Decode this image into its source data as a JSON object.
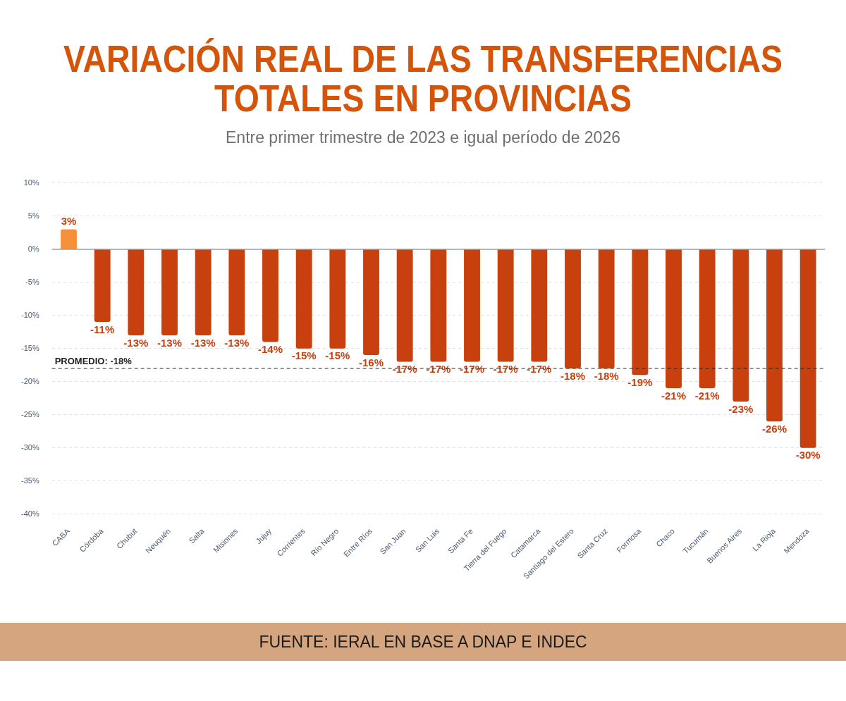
{
  "chart_data": {
    "type": "bar",
    "title": "VARIACIÓN REAL DE LAS TRANSFERENCIAS TOTALES EN PROVINCIAS",
    "subtitle": "Entre primer trimestre de 2023 e igual período de 2026",
    "categories": [
      "CABA",
      "Córdoba",
      "Chubut",
      "Neuquén",
      "Salta",
      "Misiones",
      "Jujuy",
      "Corrientes",
      "Río Negro",
      "Entre Ríos",
      "San Juan",
      "San Luis",
      "Santa Fe",
      "Tierra del Fuego",
      "Catamarca",
      "Santiago del Estero",
      "Santa Cruz",
      "Formosa",
      "Chaco",
      "Tucumán",
      "Buenos Aires",
      "La Rioja",
      "Mendoza"
    ],
    "values": [
      3,
      -11,
      -13,
      -13,
      -13,
      -13,
      -14,
      -15,
      -15,
      -16,
      -17,
      -17,
      -17,
      -17,
      -17,
      -18,
      -18,
      -19,
      -21,
      -21,
      -23,
      -26,
      -30
    ],
    "value_labels": [
      "3%",
      "-11%",
      "-13%",
      "-13%",
      "-13%",
      "-13%",
      "-14%",
      "-15%",
      "-15%",
      "-16%",
      "-17%",
      "-17%",
      "-17%",
      "-17%",
      "-17%",
      "-18%",
      "-18%",
      "-19%",
      "-21%",
      "-21%",
      "-23%",
      "-26%",
      "-30%"
    ],
    "colors": [
      "#f7903a",
      "#c9400f",
      "#c9400f",
      "#c9400f",
      "#c9400f",
      "#c9400f",
      "#c9400f",
      "#c9400f",
      "#c9400f",
      "#c9400f",
      "#c9400f",
      "#c9400f",
      "#c9400f",
      "#c9400f",
      "#c9400f",
      "#c9400f",
      "#c9400f",
      "#c9400f",
      "#c9400f",
      "#c9400f",
      "#c9400f",
      "#c9400f",
      "#c9400f"
    ],
    "ylim": [
      -40,
      10
    ],
    "yticks": [
      {
        "value": -40,
        "label": "-40%"
      },
      {
        "value": -35,
        "label": "-35%"
      },
      {
        "value": -30,
        "label": "-30%"
      },
      {
        "value": -25,
        "label": "-25%"
      },
      {
        "value": -20,
        "label": "-20%"
      },
      {
        "value": -15,
        "label": "-15%"
      },
      {
        "value": -10,
        "label": "-10%"
      },
      {
        "value": -5,
        "label": "-5%"
      },
      {
        "value": 0,
        "label": "0%"
      },
      {
        "value": 5,
        "label": "5%"
      },
      {
        "value": 10,
        "label": "10%"
      }
    ],
    "grid": "y",
    "legend": false,
    "ref_lines": [
      {
        "axis": "y",
        "value": -18,
        "label": "PROMEDIO: -18%",
        "color": "#222222",
        "line_style": "dashed"
      }
    ],
    "annotations": [
      "FUENTE: IERAL EN BASE A DNAP E INDEC"
    ]
  }
}
